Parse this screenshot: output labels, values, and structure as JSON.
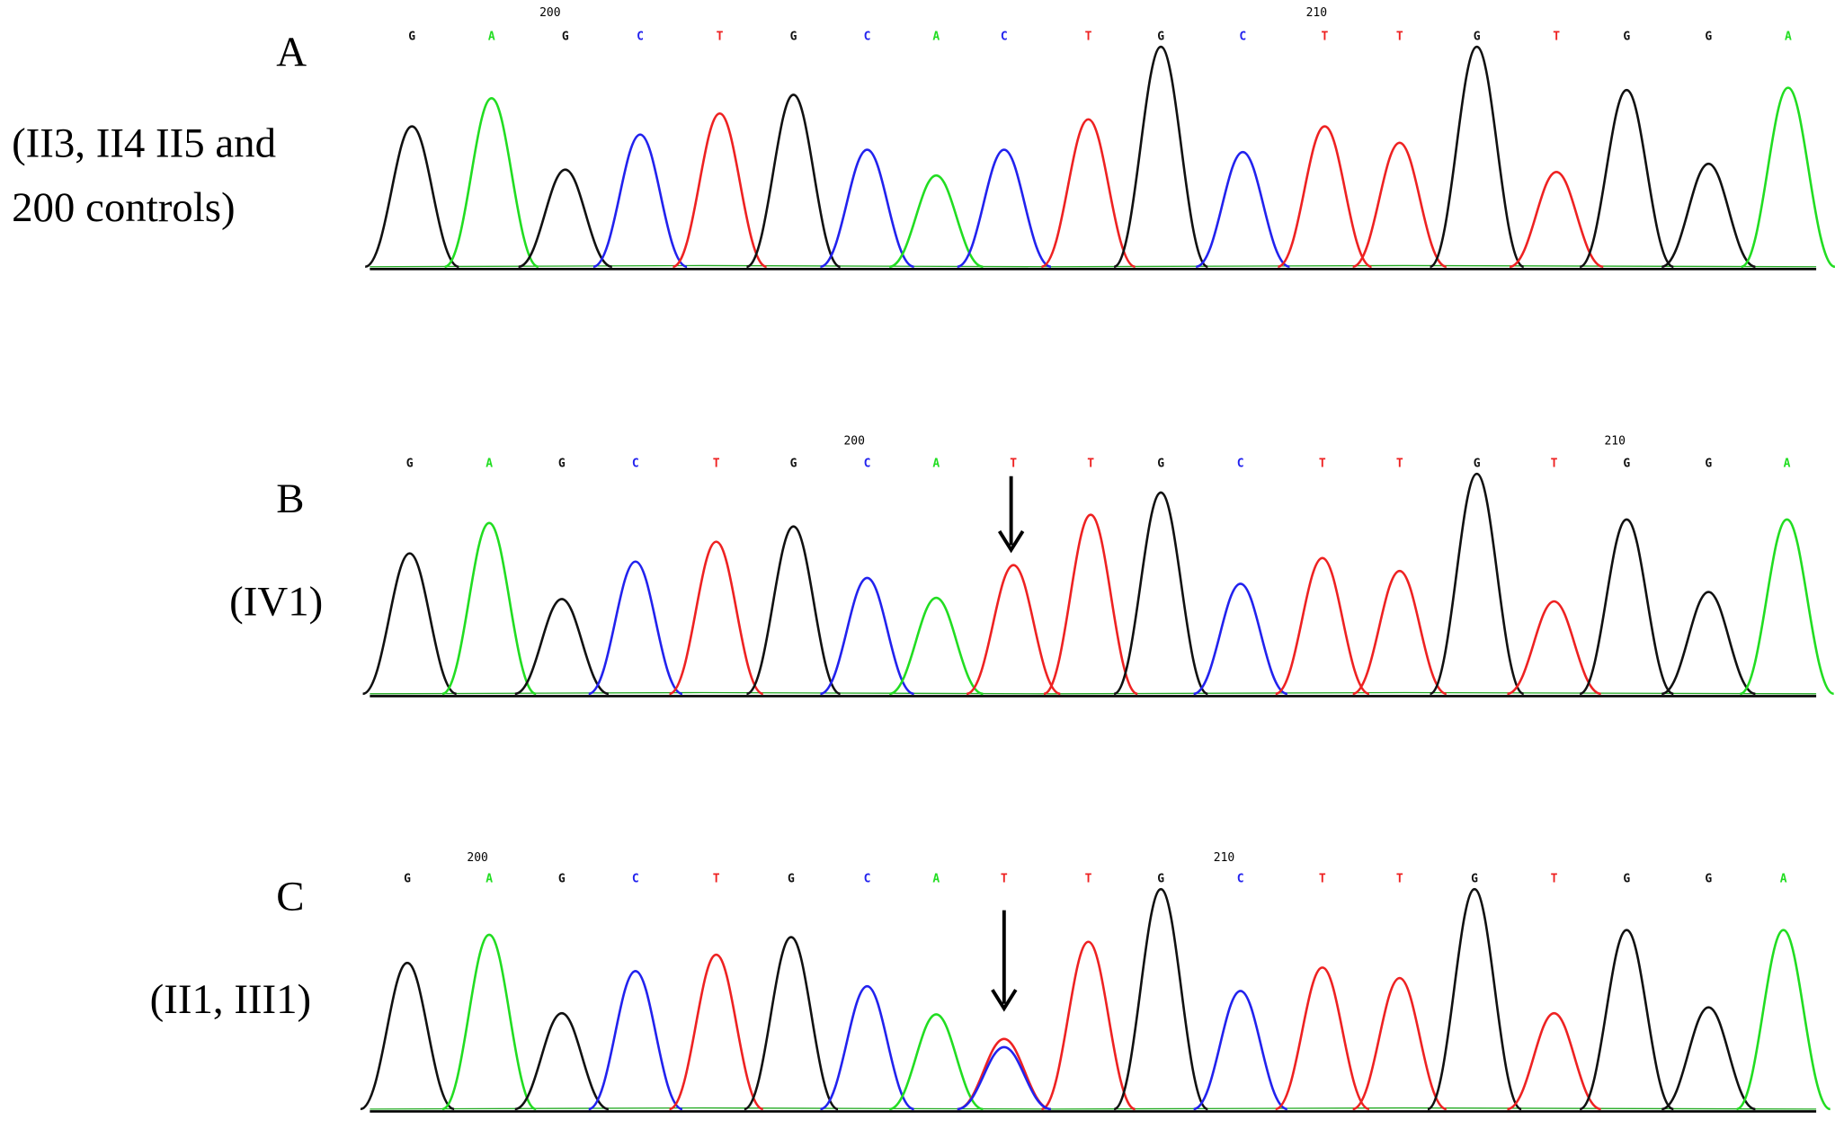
{
  "panels": [
    {
      "label": "A",
      "description": [
        "(II3, II4  II5 and",
        "200 controls)"
      ],
      "positions": [
        "200",
        "210"
      ],
      "bases": [
        "G",
        "A",
        "G",
        "C",
        "T",
        "G",
        "C",
        "A",
        "C",
        "T",
        "G",
        "C",
        "T",
        "T",
        "G",
        "T",
        "G",
        "G",
        "A"
      ],
      "peaks": [
        120,
        144,
        83,
        113,
        131,
        147,
        100,
        78,
        100,
        126,
        188,
        98,
        120,
        106,
        188,
        81,
        151,
        88,
        153
      ]
    },
    {
      "label": "B",
      "description": [
        "(IV1)"
      ],
      "positions": [
        "200",
        "210"
      ],
      "bases": [
        "G",
        "A",
        "G",
        "C",
        "T",
        "G",
        "C",
        "A",
        "T",
        "T",
        "G",
        "C",
        "T",
        "T",
        "G",
        "T",
        "G",
        "G",
        "A"
      ],
      "peaks": [
        120,
        146,
        81,
        113,
        130,
        143,
        99,
        82,
        110,
        153,
        172,
        94,
        116,
        105,
        188,
        79,
        149,
        87,
        149
      ]
    },
    {
      "label": "C",
      "description": [
        "(II1, III1)"
      ],
      "positions": [
        "200",
        "210"
      ],
      "bases": [
        "G",
        "A",
        "G",
        "C",
        "T",
        "G",
        "C",
        "A",
        "T",
        "T",
        "G",
        "C",
        "T",
        "T",
        "G",
        "T",
        "G",
        "G",
        "A"
      ],
      "peaks": [
        125,
        149,
        82,
        118,
        132,
        147,
        105,
        81,
        60,
        143,
        188,
        101,
        121,
        112,
        188,
        82,
        153,
        87,
        153
      ],
      "secondary": {
        "base": "C",
        "peak": 53
      }
    }
  ],
  "colors": {
    "G": "#111111",
    "A": "#22dd22",
    "C": "#2222ee",
    "T": "#ee2222"
  }
}
